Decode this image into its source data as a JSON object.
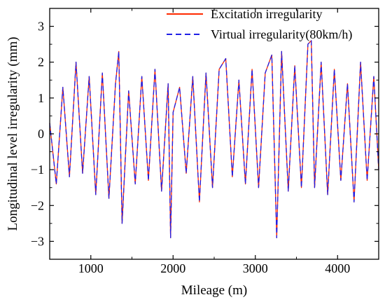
{
  "chart_data": {
    "type": "line",
    "title": "",
    "xlabel": "Mileage (m)",
    "ylabel": "Longitudinal level irregularity (mm)",
    "xlim": [
      500,
      4500
    ],
    "ylim": [
      -3.5,
      3.5
    ],
    "x_ticks": [
      1000,
      2000,
      3000,
      4000
    ],
    "x_tick_labels": [
      "1000",
      "2000",
      "3000",
      "4000"
    ],
    "y_ticks": [
      -3,
      -2,
      -1,
      0,
      1,
      2,
      3
    ],
    "y_tick_labels": [
      "−3",
      "−2",
      "−1",
      "0",
      "1",
      "2",
      "3"
    ],
    "grid": false,
    "legend_position": "top-right",
    "series": [
      {
        "name": "Excitation irregularity",
        "color": "#ff2a00",
        "style": "solid"
      },
      {
        "name": "Virtual irregularity(80km/h)",
        "color": "#1f1fe6",
        "style": "dashed"
      }
    ],
    "x": [
      500,
      580,
      660,
      740,
      820,
      900,
      980,
      1060,
      1140,
      1220,
      1300,
      1340,
      1380,
      1460,
      1540,
      1620,
      1700,
      1780,
      1860,
      1940,
      1970,
      2000,
      2080,
      2160,
      2240,
      2320,
      2400,
      2480,
      2560,
      2640,
      2720,
      2800,
      2880,
      2960,
      3040,
      3120,
      3200,
      3260,
      3320,
      3400,
      3480,
      3560,
      3640,
      3680,
      3720,
      3800,
      3880,
      3960,
      4040,
      4120,
      4200,
      4280,
      4360,
      4440,
      4500
    ],
    "values": [
      0.3,
      -1.4,
      1.3,
      -1.2,
      2.0,
      -1.1,
      1.6,
      -1.7,
      1.7,
      -1.8,
      1.4,
      2.3,
      -2.5,
      1.2,
      -1.4,
      1.6,
      -1.3,
      1.8,
      -1.6,
      1.4,
      -2.9,
      0.6,
      1.3,
      -1.1,
      1.6,
      -1.9,
      1.7,
      -1.5,
      1.8,
      2.1,
      -1.2,
      1.5,
      -1.4,
      1.8,
      -1.5,
      1.7,
      2.2,
      -2.9,
      2.3,
      -1.6,
      1.9,
      -1.5,
      2.5,
      2.6,
      -1.5,
      2.0,
      -1.7,
      1.8,
      -1.3,
      1.4,
      -1.9,
      2.0,
      -1.3,
      1.6,
      -1.0
    ]
  }
}
